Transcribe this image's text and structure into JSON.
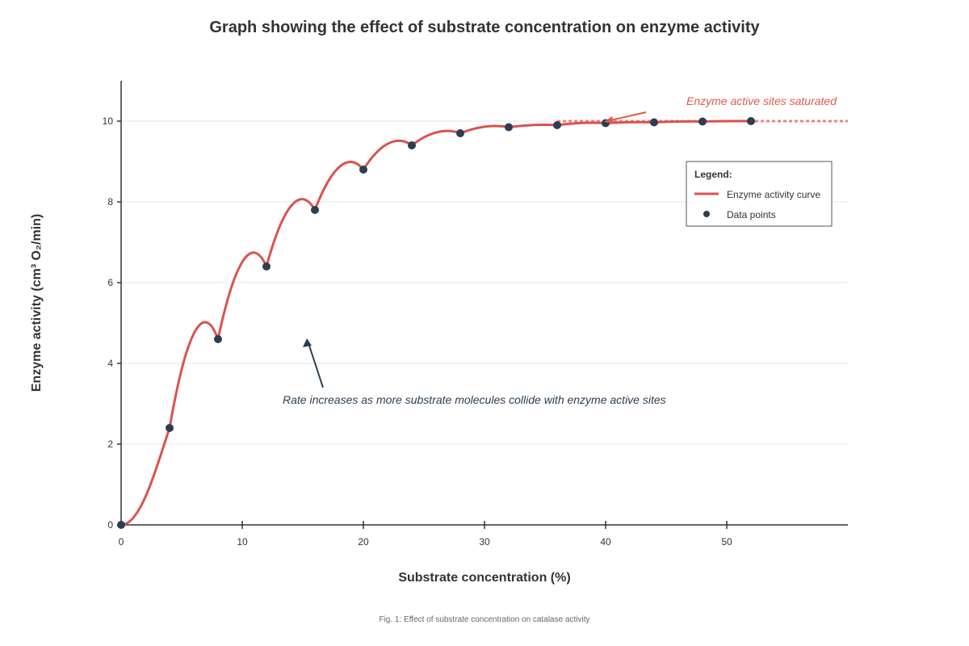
{
  "chart_data": {
    "type": "line",
    "title": "Graph showing the effect of substrate concentration on enzyme activity",
    "xlabel": "Substrate concentration (%)",
    "ylabel": "Enzyme activity (cm³ O₂/min)",
    "xlim": [
      0,
      60
    ],
    "ylim": [
      0,
      11
    ],
    "x_ticks": [
      0,
      10,
      20,
      30,
      40,
      50
    ],
    "y_ticks": [
      0,
      2,
      4,
      6,
      8,
      10
    ],
    "grid": "horizontal",
    "legend_position": "top-right",
    "legend_title": "Legend:",
    "series": [
      {
        "name": "Data points",
        "x": [
          0,
          4,
          8,
          12,
          16,
          20,
          24,
          28,
          32,
          36,
          40,
          44,
          48,
          52
        ],
        "y": [
          0,
          2.4,
          4.6,
          6.4,
          7.8,
          8.8,
          9.4,
          9.7,
          9.85,
          9.9,
          9.95,
          9.97,
          9.99,
          10.0
        ]
      },
      {
        "name": "Enzyme activity curve",
        "x": [
          0,
          4,
          8,
          12,
          16,
          20,
          24,
          28,
          32,
          36,
          40,
          44,
          48,
          52
        ],
        "y": [
          0,
          2.4,
          4.6,
          6.4,
          7.8,
          8.8,
          9.4,
          9.7,
          9.85,
          9.9,
          9.95,
          9.97,
          9.99,
          10.0
        ]
      }
    ],
    "saturation_line": {
      "x_start": 36,
      "x_end": 60,
      "y": 10
    },
    "annotations": [
      {
        "text": "Enzyme active sites saturated",
        "color": "#e05a4b"
      },
      {
        "text": "Rate increases as more substrate molecules collide with enzyme active sites",
        "color": "#2c3e50"
      }
    ],
    "caption": "Fig. 1: Effect of substrate concentration on catalase activity",
    "colors": {
      "curve": "#d9534f",
      "points": "#2c3e50",
      "saturation": "#e8877f",
      "annotation_saturated": "#e05a4b",
      "annotation_rate": "#2c3e50",
      "grid": "#e5e5e5",
      "axis": "#333333"
    }
  }
}
